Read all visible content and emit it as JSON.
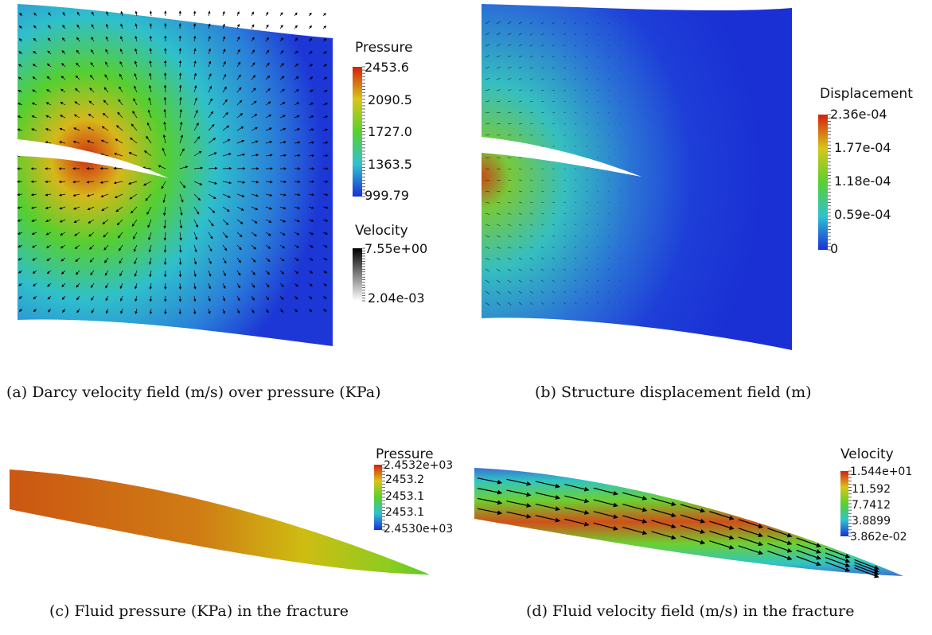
{
  "figures": [
    {
      "caption": "(a) Darcy velocity field (m/s) over pressure (KPa)",
      "legends": [
        {
          "title": "Pressure",
          "labels": [
            "2453.6",
            "2090.5",
            "1727.0",
            "1363.5",
            "999.79"
          ]
        },
        {
          "title": "Velocity",
          "labels": [
            "7.55e+00",
            "2.04e-03"
          ]
        }
      ]
    },
    {
      "caption": "(b) Structure displacement field (m)",
      "legends": [
        {
          "title": "Displacement",
          "labels": [
            "2.36e-04",
            "1.77e-04",
            "1.18e-04",
            "0.59e-04",
            "0"
          ]
        }
      ]
    },
    {
      "caption": "(c) Fluid pressure (KPa) in the fracture",
      "legends": [
        {
          "title": "Pressure",
          "labels": [
            "2.4532e+03",
            "2453.2",
            "2453.1",
            "2453.1",
            "2.4530e+03"
          ]
        }
      ]
    },
    {
      "caption": "(d) Fluid velocity field (m/s) in the fracture",
      "legends": [
        {
          "title": "Velocity",
          "labels": [
            "1.544e+01",
            "11.592",
            "7.7412",
            "3.8899",
            "3.862e-02"
          ]
        }
      ]
    }
  ],
  "colors": {
    "low": "#1432d8",
    "mid_low": "#33c6c2",
    "mid": "#5fd02a",
    "mid_high": "#d6c71a",
    "high": "#d02410"
  }
}
